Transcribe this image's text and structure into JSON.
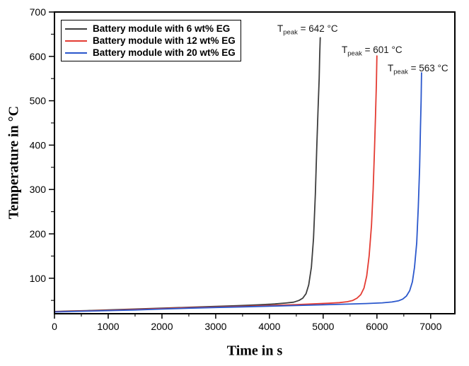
{
  "chart_data": {
    "type": "line",
    "title": "",
    "xlabel": "Time in s",
    "ylabel": "Temperature in °C",
    "xlim": [
      0,
      7450
    ],
    "ylim": [
      20,
      700
    ],
    "x_ticks": [
      0,
      1000,
      2000,
      3000,
      4000,
      5000,
      6000,
      7000
    ],
    "x_minor_step": 500,
    "y_ticks": [
      100,
      200,
      300,
      400,
      500,
      600,
      700
    ],
    "y_minor_step": 50,
    "grid": false,
    "legend_position": "top-left",
    "frame_color": "#000000",
    "series": [
      {
        "name": "Battery module with 6 wt% EG",
        "color": "#3d3d3d",
        "peak_c": 642,
        "peak_time_s": 4945,
        "points": [
          [
            0,
            25
          ],
          [
            300,
            26
          ],
          [
            600,
            27
          ],
          [
            1000,
            28.5
          ],
          [
            1500,
            30.5
          ],
          [
            2000,
            32.5
          ],
          [
            2500,
            34.5
          ],
          [
            3000,
            36.5
          ],
          [
            3400,
            38
          ],
          [
            3800,
            40
          ],
          [
            4100,
            42
          ],
          [
            4300,
            44
          ],
          [
            4450,
            46
          ],
          [
            4550,
            50
          ],
          [
            4620,
            55
          ],
          [
            4680,
            65
          ],
          [
            4730,
            85
          ],
          [
            4780,
            125
          ],
          [
            4820,
            190
          ],
          [
            4855,
            290
          ],
          [
            4880,
            390
          ],
          [
            4905,
            480
          ],
          [
            4925,
            550
          ],
          [
            4935,
            600
          ],
          [
            4945,
            642
          ]
        ]
      },
      {
        "name": "Battery module with 12 wt% EG",
        "color": "#e43b32",
        "peak_c": 601,
        "peak_time_s": 6000,
        "points": [
          [
            0,
            24.5
          ],
          [
            500,
            26
          ],
          [
            1000,
            27.5
          ],
          [
            1500,
            29.5
          ],
          [
            2000,
            31.5
          ],
          [
            2500,
            33.5
          ],
          [
            3000,
            35
          ],
          [
            3500,
            36.5
          ],
          [
            4000,
            38.5
          ],
          [
            4500,
            40.5
          ],
          [
            4800,
            42
          ],
          [
            5100,
            43.5
          ],
          [
            5300,
            45
          ],
          [
            5450,
            47
          ],
          [
            5550,
            50
          ],
          [
            5630,
            55
          ],
          [
            5700,
            63
          ],
          [
            5760,
            78
          ],
          [
            5810,
            105
          ],
          [
            5855,
            150
          ],
          [
            5900,
            220
          ],
          [
            5930,
            300
          ],
          [
            5955,
            390
          ],
          [
            5975,
            470
          ],
          [
            5990,
            540
          ],
          [
            6000,
            601
          ]
        ]
      },
      {
        "name": "Battery module with 20 wt% EG",
        "color": "#2a57cc",
        "peak_c": 563,
        "peak_time_s": 6830,
        "points": [
          [
            0,
            24
          ],
          [
            500,
            25.5
          ],
          [
            1000,
            27
          ],
          [
            1500,
            28.5
          ],
          [
            2000,
            30.5
          ],
          [
            2500,
            32.5
          ],
          [
            3000,
            34
          ],
          [
            3500,
            35.5
          ],
          [
            4000,
            37
          ],
          [
            4500,
            38.5
          ],
          [
            5000,
            40
          ],
          [
            5400,
            41.5
          ],
          [
            5800,
            43
          ],
          [
            6100,
            44.5
          ],
          [
            6280,
            46.5
          ],
          [
            6400,
            49
          ],
          [
            6480,
            53
          ],
          [
            6550,
            60
          ],
          [
            6610,
            72
          ],
          [
            6660,
            92
          ],
          [
            6700,
            125
          ],
          [
            6740,
            180
          ],
          [
            6770,
            260
          ],
          [
            6795,
            350
          ],
          [
            6810,
            440
          ],
          [
            6822,
            500
          ],
          [
            6830,
            563
          ]
        ]
      }
    ],
    "annotations": [
      {
        "symbol": "T",
        "sub": "peak",
        "text": " = 642 °C"
      },
      {
        "symbol": "T",
        "sub": "peak",
        "text": " = 601 °C"
      },
      {
        "symbol": "T",
        "sub": "peak",
        "text": " = 563 °C"
      }
    ]
  }
}
